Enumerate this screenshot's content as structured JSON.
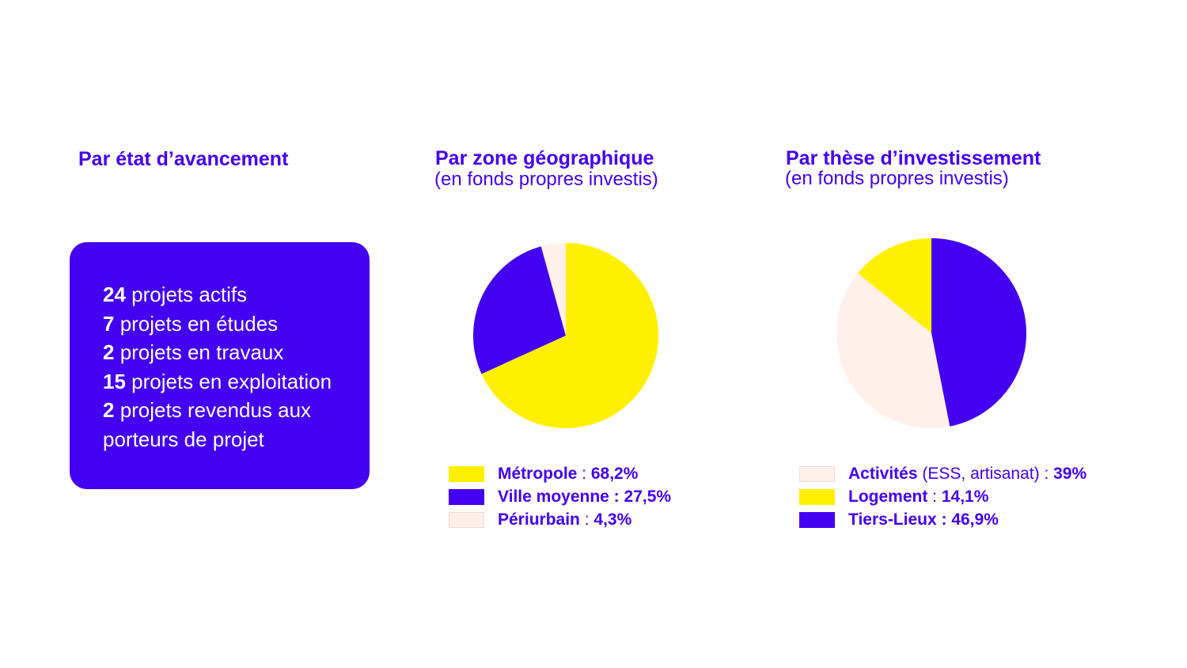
{
  "status_column": {
    "title": "Par état d’avancement",
    "lines": [
      {
        "count": "24",
        "text": " projets actifs"
      },
      {
        "count": "7",
        "text": " projets en études"
      },
      {
        "count": "2",
        "text": " projets en travaux"
      },
      {
        "count": "15",
        "text": " projets en exploitation"
      },
      {
        "count": "2",
        "text": " projets revendus aux"
      },
      {
        "count": "",
        "text": "porteurs de projet"
      }
    ]
  },
  "colors": {
    "primary": "#4400f0",
    "yellow": "#fff000",
    "cream": "#fff0ea",
    "cream_border": "#f3dcd4"
  },
  "chart_data": [
    {
      "type": "pie",
      "title": "Par zone géographique",
      "subtitle": "(en fonds propres investis)",
      "start_angle_deg": 0,
      "slices": [
        {
          "name": "Métropole",
          "value": 68.2,
          "value_label": "68,2%",
          "sep": " : ",
          "color": "#fff000"
        },
        {
          "name": "Ville moyenne",
          "value": 27.5,
          "value_label": "27,5%",
          "sep": " : ",
          "color": "#4400f0"
        },
        {
          "name": "Périurbain",
          "value": 4.3,
          "value_label": "4,3%",
          "sep": " : ",
          "color": "#fff0ea"
        }
      ],
      "legend": [
        {
          "name": "Métropole",
          "sep": " : ",
          "value_label": "68,2%",
          "color": "#fff000"
        },
        {
          "name": "Ville moyenne",
          "sep": " : ",
          "value_label": "27,5%",
          "color": "#4400f0"
        },
        {
          "name": "Périurbain",
          "sep": " : ",
          "value_label": "4,3%",
          "color": "#fff0ea"
        }
      ]
    },
    {
      "type": "pie",
      "title": "Par thèse d’investissement",
      "subtitle": "(en fonds propres investis)",
      "start_angle_deg": 0,
      "slices": [
        {
          "name": "Tiers-Lieux",
          "value": 46.9,
          "value_label": "46,9%",
          "color": "#4400f0"
        },
        {
          "name": "Activités",
          "value": 39,
          "value_label": "39%",
          "color": "#fff0ea"
        },
        {
          "name": "Logement",
          "value": 14.1,
          "value_label": "14,1%",
          "color": "#fff000"
        }
      ],
      "legend": [
        {
          "name": "Activités",
          "note": " (ESS, artisanat)",
          "sep": " : ",
          "value_label": "39%",
          "color": "#fff0ea"
        },
        {
          "name": "Logement",
          "note": "",
          "sep": " : ",
          "value_label": "14,1%",
          "color": "#fff000"
        },
        {
          "name": "Tiers-Lieux",
          "note": "",
          "sep": " : ",
          "value_label": "46,9%",
          "color": "#4400f0"
        }
      ]
    }
  ]
}
